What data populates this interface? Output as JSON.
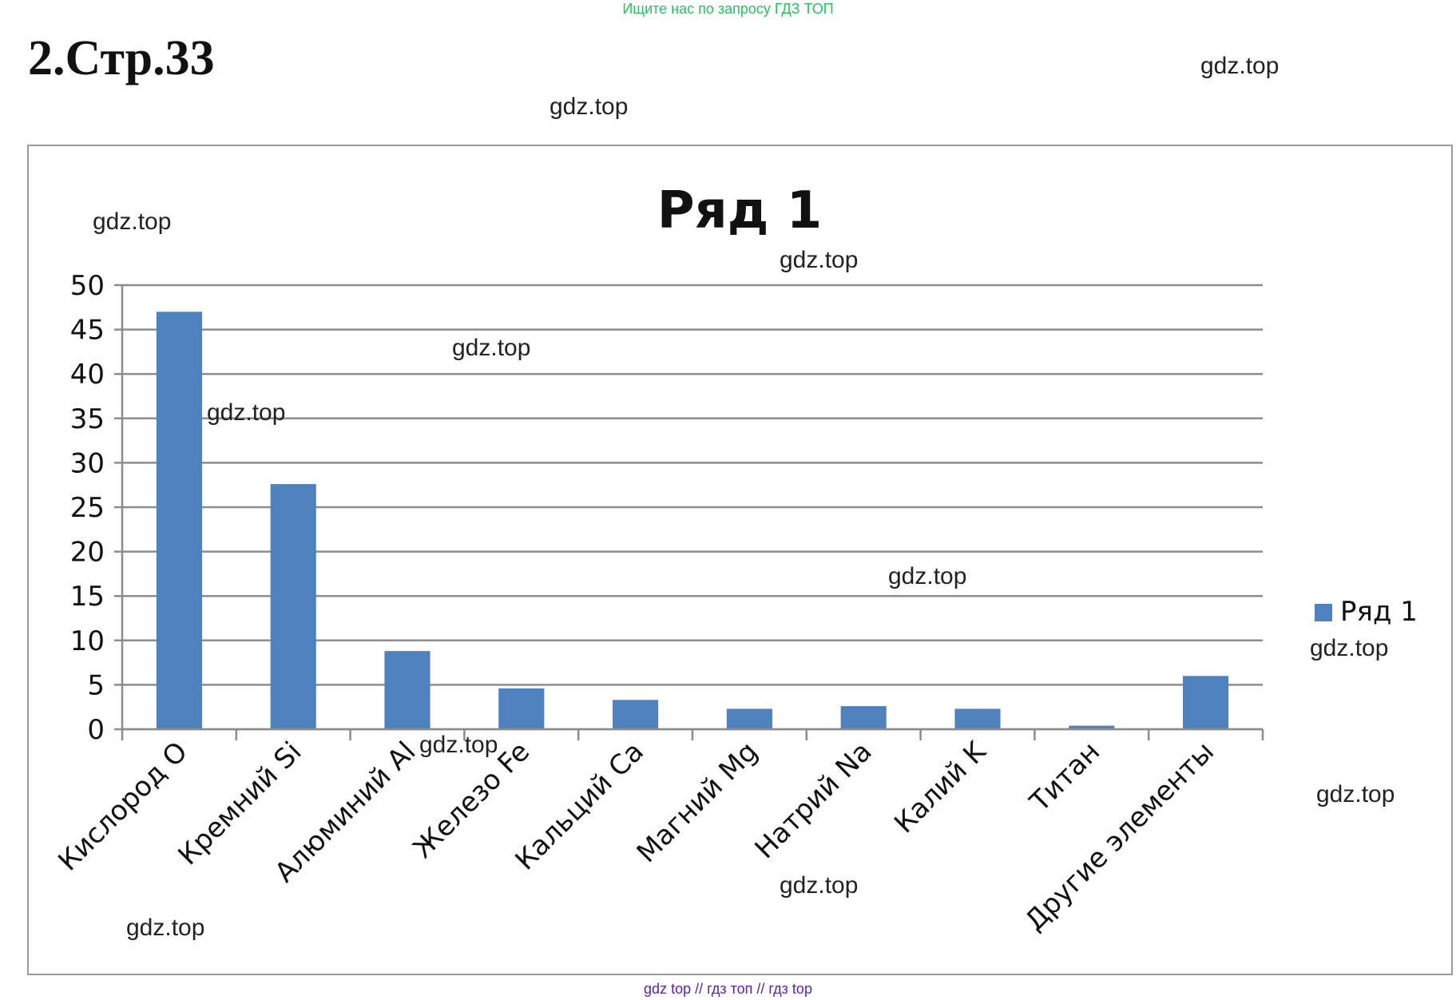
{
  "banner": "Ищите нас по запросу ГДЗ ТОП",
  "page_title": "2.Стр.33",
  "watermark": "gdz.top",
  "footer": "gdz top  //  гдз топ  //  гдз top",
  "colors": {
    "bar": "#4f81bd",
    "grid": "#8c8c8c",
    "banner": "#22c55e",
    "footer": "#5b21b6"
  },
  "chart_data": {
    "type": "bar",
    "title": "Ряд 1",
    "categories": [
      "Кислород О",
      "Кремний Si",
      "Алюминий Al",
      "Железо Fe",
      "Кальций Ca",
      "Магний Mg",
      "Натрий Na",
      "Калий K",
      "Титан",
      "Другие элементы"
    ],
    "series": [
      {
        "name": "Ряд 1",
        "values": [
          47,
          27.6,
          8.8,
          4.6,
          3.3,
          2.3,
          2.6,
          2.3,
          0.4,
          6
        ]
      }
    ],
    "ylim": [
      0,
      50
    ],
    "yticks": [
      0,
      5,
      10,
      15,
      20,
      25,
      30,
      35,
      40,
      45,
      50
    ],
    "grid": true,
    "legend": "right"
  }
}
